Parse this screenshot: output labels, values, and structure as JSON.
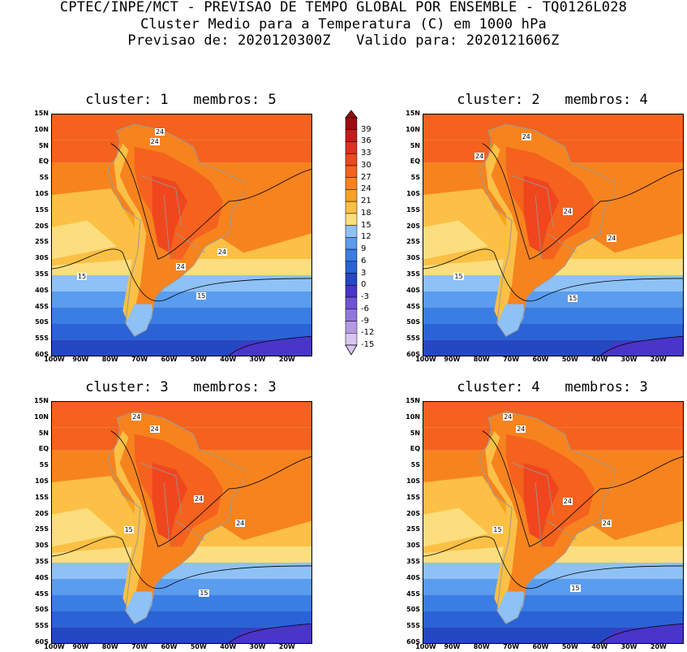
{
  "header": {
    "line1": "CPTEC/INPE/MCT - PREVISAO DE TEMPO GLOBAL POR ENSEMBLE - TQ0126L028",
    "line2": "Cluster Medio para a Temperatura (C) em 1000 hPa",
    "line3": "Previsao de: 2020120300Z   Valido para: 2020121606Z"
  },
  "axes": {
    "lat_ticks": [
      "15N",
      "10N",
      "5N",
      "EQ",
      "5S",
      "10S",
      "15S",
      "20S",
      "25S",
      "30S",
      "35S",
      "40S",
      "45S",
      "50S",
      "55S",
      "60S"
    ],
    "lon_ticks": [
      "100W",
      "90W",
      "80W",
      "70W",
      "60W",
      "50W",
      "40W",
      "30W",
      "20W"
    ]
  },
  "colorbar": {
    "labels": [
      "39",
      "36",
      "33",
      "30",
      "27",
      "24",
      "21",
      "18",
      "15",
      "12",
      "9",
      "6",
      "3",
      "0",
      "-3",
      "-6",
      "-9",
      "-12",
      "-15"
    ],
    "colors": [
      "#9e0d0d",
      "#c41a1a",
      "#e0301e",
      "#f0461e",
      "#f4621e",
      "#f7831e",
      "#f9a21e",
      "#fbc045",
      "#fdde7e",
      "#8ec1f5",
      "#5a9cee",
      "#3a7ee3",
      "#2a63d6",
      "#2448c2",
      "#4935c8",
      "#6e55d4",
      "#9177dd",
      "#b59ae6",
      "#d8c6f0"
    ]
  },
  "panels": [
    {
      "title": "cluster: 1   membros: 5",
      "contour_labels": [
        "24",
        "24",
        "24",
        "24",
        "15",
        "15"
      ]
    },
    {
      "title": "cluster: 2   membros: 4",
      "contour_labels": [
        "24",
        "24",
        "24",
        "24",
        "15",
        "15"
      ]
    },
    {
      "title": "cluster: 3   membros: 3",
      "contour_labels": [
        "24",
        "24",
        "24",
        "24",
        "15",
        "15"
      ]
    },
    {
      "title": "cluster: 4   membros: 3",
      "contour_labels": [
        "24",
        "24",
        "24",
        "24",
        "15",
        "15"
      ]
    }
  ]
}
